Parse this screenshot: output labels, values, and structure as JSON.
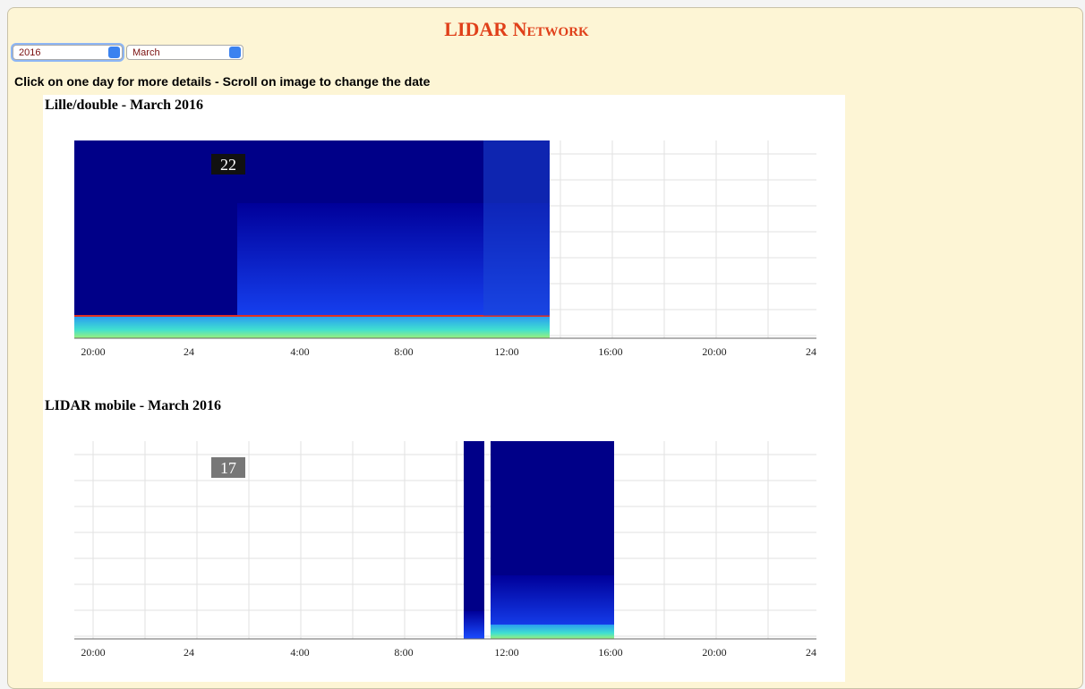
{
  "header": {
    "title": "LIDAR Network"
  },
  "controls": {
    "year": "2016",
    "month": "March",
    "instruction": "Click on one day for more details - Scroll on image to change the date"
  },
  "panels": [
    {
      "title": "Lille/double - March 2016",
      "day_label": "22",
      "x_tick_labels": [
        "20:00",
        "24",
        "4:00",
        "8:00",
        "12:00",
        "16:00",
        "20:00",
        "24"
      ]
    },
    {
      "title": "LIDAR mobile - March 2016",
      "day_label": "17",
      "x_tick_labels": [
        "20:00",
        "24",
        "4:00",
        "8:00",
        "12:00",
        "16:00",
        "20:00",
        "24"
      ]
    }
  ]
}
